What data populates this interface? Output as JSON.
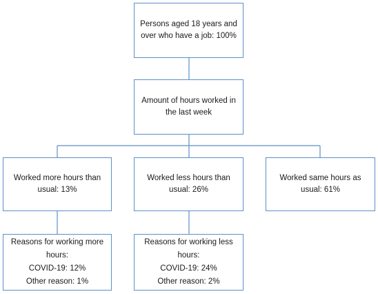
{
  "diagram": {
    "root": {
      "lines": [
        "Persons aged 18 years and",
        "over who have a job: 100%"
      ]
    },
    "hours": {
      "lines": [
        "Amount of hours worked in",
        "the last week"
      ]
    },
    "more": {
      "lines": [
        "Worked more hours than",
        "usual: 13%"
      ]
    },
    "less": {
      "lines": [
        "Worked less hours than",
        "usual: 26%"
      ]
    },
    "same": {
      "lines": [
        "Worked same hours as",
        "usual: 61%"
      ]
    },
    "reasons_more": {
      "lines": [
        "Reasons for working more",
        "hours:",
        "COVID-19: 12%",
        "Other reason: 1%"
      ]
    },
    "reasons_less": {
      "lines": [
        "Reasons for working less",
        "hours:",
        "COVID-19: 24%",
        "Other reason: 2%"
      ]
    }
  },
  "colors": {
    "box_border": "#5b8fc7",
    "connector": "#5b8fc7",
    "background": "#ffffff"
  }
}
